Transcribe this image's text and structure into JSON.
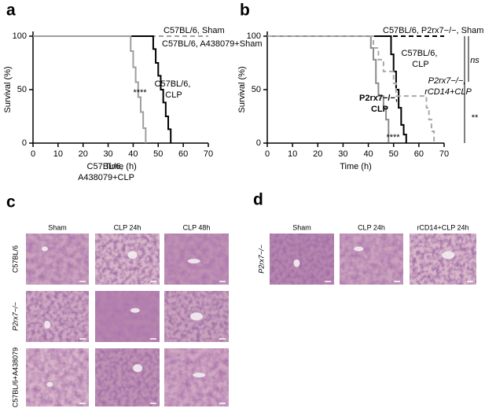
{
  "chart_data": [
    {
      "type": "line",
      "x_label": "Time (h)",
      "y_label": "Survival (%)",
      "xlim": [
        0,
        70
      ],
      "xticks": [
        0,
        10,
        20,
        30,
        40,
        50,
        60,
        70
      ],
      "ylim": [
        0,
        100
      ],
      "yticks": [
        0,
        50,
        100
      ],
      "series": [
        {
          "name": "C57BL/6, Sham",
          "color": "#000000",
          "dash": true,
          "x": [
            0,
            70
          ],
          "values": [
            100,
            100
          ]
        },
        {
          "name": "C57BL/6, A438079+Sham",
          "color": "#9e9e9e",
          "dash": true,
          "x": [
            0,
            70
          ],
          "values": [
            100,
            100
          ]
        },
        {
          "name": "C57BL/6, CLP",
          "color": "#000000",
          "dash": false,
          "x": [
            0,
            48,
            48,
            49,
            49,
            50,
            50,
            51,
            51,
            52,
            52,
            53,
            53,
            54,
            54,
            55,
            55
          ],
          "values": [
            100,
            100,
            88,
            88,
            75,
            75,
            63,
            63,
            50,
            50,
            38,
            38,
            25,
            25,
            13,
            13,
            0
          ]
        },
        {
          "name": "C57BL/6, A438079+CLP",
          "color": "#9e9e9e",
          "dash": false,
          "x": [
            0,
            39,
            39,
            40,
            40,
            41,
            41,
            42,
            42,
            43,
            43,
            44,
            44,
            45,
            45
          ],
          "values": [
            100,
            100,
            86,
            86,
            71,
            71,
            57,
            57,
            43,
            43,
            29,
            29,
            14,
            14,
            0
          ]
        }
      ],
      "annotations": [
        "****"
      ]
    },
    {
      "type": "line",
      "x_label": "Time (h)",
      "y_label": "Survival (%)",
      "xlim": [
        0,
        70
      ],
      "xticks": [
        0,
        10,
        20,
        30,
        40,
        50,
        60,
        70
      ],
      "ylim": [
        0,
        100
      ],
      "yticks": [
        0,
        50,
        100
      ],
      "series": [
        {
          "name": "C57BL/6, P2rx7−/−, Sham",
          "color": "#000000",
          "dash": true,
          "x": [
            0,
            70
          ],
          "values": [
            100,
            100
          ]
        },
        {
          "name": "C57BL/6, CLP",
          "color": "#000000",
          "dash": false,
          "x": [
            0,
            49,
            49,
            50,
            50,
            51,
            51,
            52,
            52,
            53,
            53,
            54,
            54,
            55,
            55
          ],
          "values": [
            100,
            100,
            83,
            83,
            67,
            67,
            50,
            50,
            33,
            33,
            17,
            17,
            8,
            8,
            0
          ]
        },
        {
          "name": "P2rx7−/−, CLP",
          "color": "#8c8c8c",
          "dash": false,
          "x": [
            0,
            41,
            41,
            42,
            42,
            43,
            43,
            44,
            44,
            46,
            46,
            47,
            47,
            48,
            48
          ],
          "values": [
            100,
            100,
            89,
            89,
            78,
            78,
            56,
            56,
            44,
            44,
            33,
            33,
            22,
            22,
            0
          ]
        },
        {
          "name": "P2rx7−/−, rCD14+CLP",
          "color": "#a8a8a8",
          "dash": true,
          "x": [
            0,
            42,
            42,
            44,
            44,
            46,
            46,
            50,
            50,
            51,
            51,
            63,
            63,
            64,
            64,
            65,
            65,
            66,
            66
          ],
          "values": [
            100,
            100,
            89,
            89,
            78,
            78,
            67,
            67,
            56,
            56,
            44,
            44,
            33,
            33,
            22,
            22,
            11,
            11,
            0
          ]
        }
      ],
      "annotations": [
        "****",
        "ns",
        "**"
      ]
    }
  ],
  "panel_labels": [
    "a",
    "b",
    "c",
    "d"
  ],
  "histology": [
    {
      "columns": [
        "Sham",
        "CLP 24h",
        "CLP 48h"
      ],
      "rows": [
        "C57BL/6",
        "P2rx7−/−",
        "C57BL/6+A438079"
      ]
    },
    {
      "columns": [
        "Sham",
        "CLP 24h",
        "rCD14+CLP 24h"
      ],
      "rows": [
        "P2rx7−/−"
      ]
    }
  ]
}
